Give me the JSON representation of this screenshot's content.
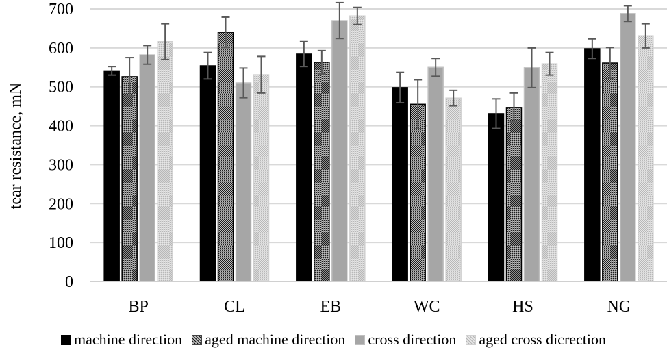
{
  "chart_data": {
    "type": "bar",
    "title": "",
    "xlabel": "",
    "ylabel": "tear resistance, mN",
    "ylim": [
      0,
      700
    ],
    "yticks": [
      0,
      100,
      200,
      300,
      400,
      500,
      600,
      700
    ],
    "grid": true,
    "legend_position": "bottom",
    "categories": [
      "BP",
      "CL",
      "EB",
      "WC",
      "HS",
      "NG"
    ],
    "series": [
      {
        "name": "machine direction",
        "fill": "#000000",
        "pattern": "solid",
        "values": [
          541,
          554,
          584,
          498,
          431,
          598
        ],
        "errors": [
          11,
          34,
          32,
          39,
          38,
          25
        ]
      },
      {
        "name": "aged machine direction",
        "fill": "#3a3a3a",
        "pattern": "dense-hatch",
        "values": [
          526,
          640,
          563,
          455,
          447,
          561
        ],
        "errors": [
          49,
          39,
          30,
          63,
          37,
          40
        ]
      },
      {
        "name": "cross direction",
        "fill": "#a6a6a6",
        "pattern": "solid",
        "values": [
          582,
          510,
          670,
          550,
          549,
          688
        ],
        "errors": [
          24,
          38,
          46,
          23,
          51,
          20
        ]
      },
      {
        "name": "aged cross dicrection",
        "fill": "#d0d0d0",
        "pattern": "light-hatch",
        "values": [
          616,
          531,
          682,
          471,
          559,
          631
        ],
        "errors": [
          46,
          47,
          22,
          20,
          29,
          31
        ]
      }
    ]
  }
}
